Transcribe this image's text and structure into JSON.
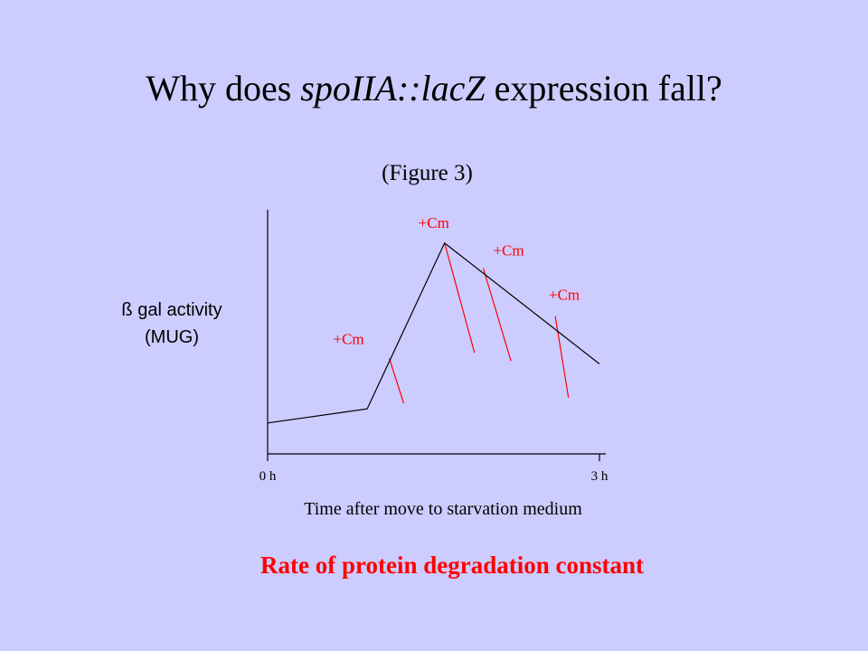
{
  "slide": {
    "title_pre": "Why does ",
    "title_gene": "spoIIA::lacZ",
    "title_post": " expression fall?",
    "subtitle": "(Figure 3)",
    "ylabel_line1": "ß gal activity",
    "ylabel_line2": "(MUG)",
    "xlabel": "Time after move to starvation medium",
    "conclusion": "Rate of protein degradation constant"
  },
  "chart_data": {
    "type": "line",
    "x_ticks": [
      "0 h",
      "3 h"
    ],
    "xlim": [
      0,
      3
    ],
    "series": [
      {
        "x": [
          0,
          0.9,
          1.6,
          3.0
        ],
        "y": [
          1.1,
          1.6,
          7.5,
          3.2
        ]
      }
    ],
    "annotations": [
      {
        "label": "+Cm",
        "from": [
          1.1,
          3.4
        ],
        "to": [
          1.23,
          1.8
        ]
      },
      {
        "label": "+Cm",
        "from": [
          1.6,
          7.5
        ],
        "to": [
          1.87,
          3.6
        ]
      },
      {
        "label": "+Cm",
        "from": [
          1.95,
          6.6
        ],
        "to": [
          2.2,
          3.3
        ]
      },
      {
        "label": "+Cm",
        "from": [
          2.6,
          4.9
        ],
        "to": [
          2.72,
          2.0
        ]
      }
    ],
    "colors": {
      "line": "#000000",
      "annotation": "#ff0000"
    }
  }
}
